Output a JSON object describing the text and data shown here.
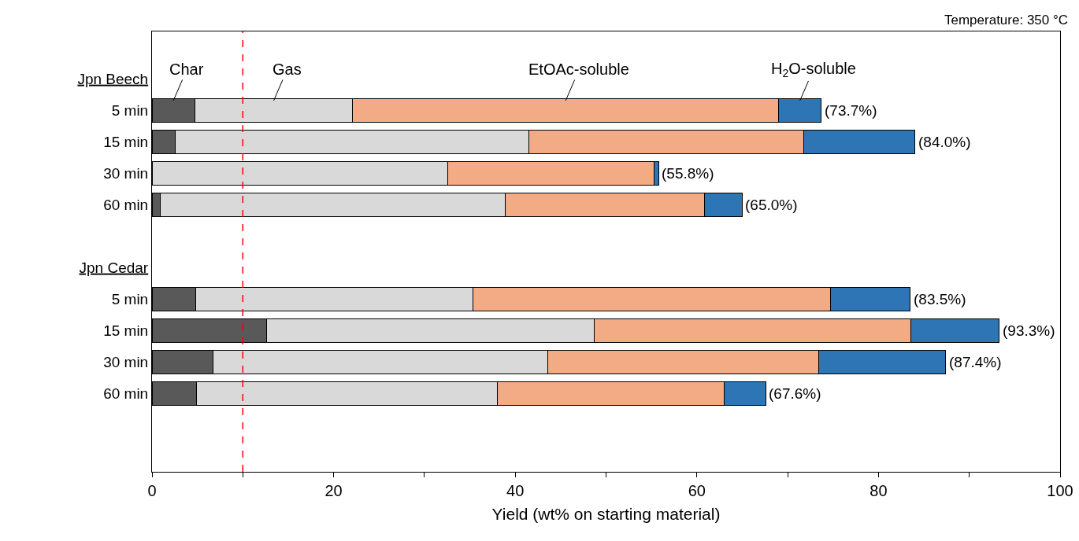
{
  "chart_data": {
    "type": "bar",
    "orientation": "horizontal",
    "stacked": true,
    "xlabel": "Yield (wt% on starting material)",
    "categories": [
      null,
      "Jpn Beech",
      "5 min",
      "15 min",
      "30 min",
      "60 min",
      null,
      "Jpn Cedar",
      "5 min",
      "15 min",
      "30 min",
      "60 min",
      null,
      null
    ],
    "series": [
      {
        "name": "Char",
        "color": "#595959",
        "values": [
          null,
          null,
          4.7,
          2.6,
          0,
          0.9,
          null,
          null,
          4.8,
          12.6,
          6.7,
          4.9,
          null,
          null
        ]
      },
      {
        "name": "Gas",
        "color": "#d9d9d9",
        "values": [
          null,
          null,
          17.4,
          38.9,
          32.6,
          38.0,
          null,
          null,
          30.5,
          36.1,
          36.9,
          33.1,
          null,
          null
        ]
      },
      {
        "name": "EtOAc-soluble",
        "color": "#f2ab85",
        "values": [
          null,
          null,
          46.9,
          30.3,
          22.7,
          21.9,
          null,
          null,
          39.4,
          34.9,
          29.8,
          25.0,
          null,
          null
        ]
      },
      {
        "name": "H$_{2}$O-soluble",
        "color": "#2e75b6",
        "values": [
          null,
          null,
          4.7,
          12.2,
          0.5,
          4.2,
          null,
          null,
          8.8,
          9.7,
          14.0,
          4.6,
          null,
          null
        ]
      }
    ],
    "totals": [
      null,
      null,
      "(73.7%)",
      "(84.0%)",
      "(55.8%)",
      "(65.0%)",
      null,
      null,
      "(83.5%)",
      "(93.3%)",
      "(87.4%)",
      "(67.6%)",
      null,
      null
    ],
    "xlim": [
      0,
      100
    ],
    "xticks": [
      0,
      {
        "value": 10,
        "label": null
      },
      20,
      {
        "value": 30,
        "label": null
      },
      40,
      {
        "value": 50,
        "label": null
      },
      60,
      {
        "value": 70,
        "label": null
      },
      80,
      {
        "value": 90,
        "label": null
      },
      100
    ],
    "ref_lines": [
      {
        "axis": "x",
        "value": 10,
        "color": "#ff0000",
        "line_style": "dashed"
      }
    ],
    "annotations": [
      "Temperature: 350 °C"
    ],
    "grid": false
  }
}
